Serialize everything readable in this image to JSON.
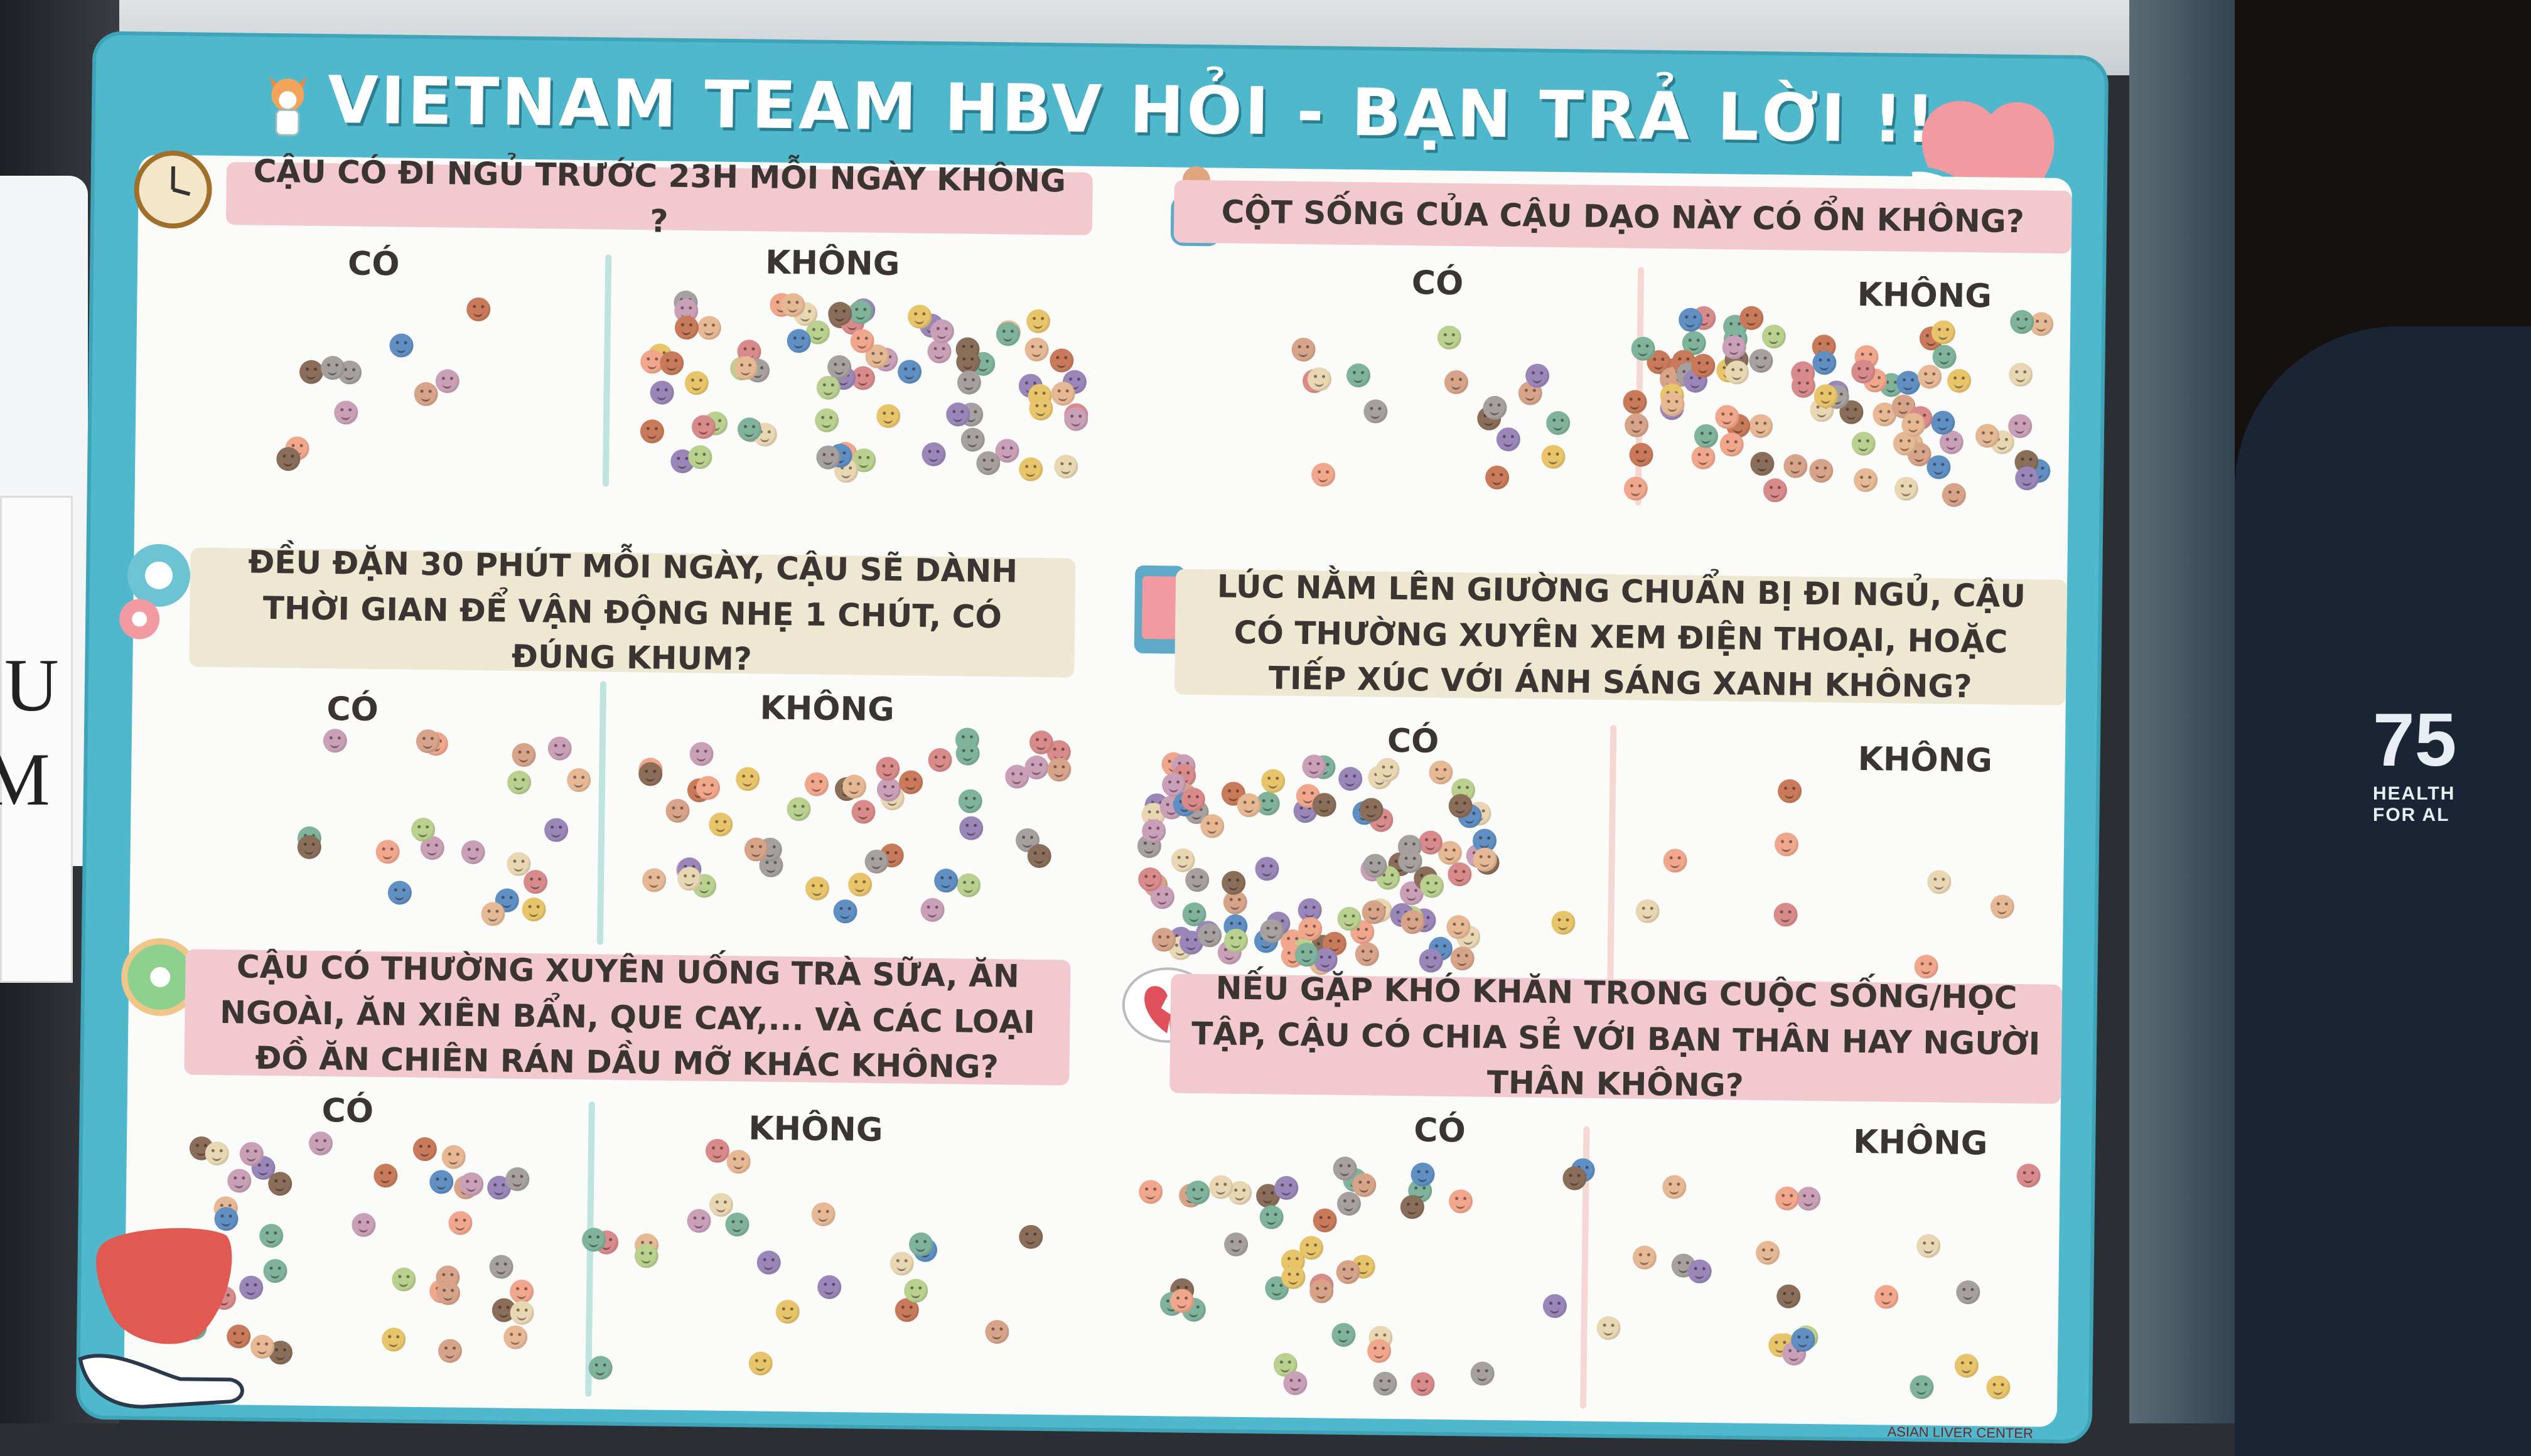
{
  "board": {
    "title": "VIETNAM TEAM HBV HỎI - BẠN TRẢ LỜI !!",
    "footer": "ASIAN LIVER CENTER"
  },
  "questions": [
    {
      "text": "CẬU CÓ ĐI NGỦ TRƯỚC 23H MỖI NGÀY KHÔNG ?",
      "yes": "CÓ",
      "no": "KHÔNG",
      "icon": "clock-icon"
    },
    {
      "text": "CỘT SỐNG CỦA CẬU DẠO NÀY CÓ ỔN KHÔNG?",
      "yes": "CÓ",
      "no": "KHÔNG",
      "icon": "back-pain-icon"
    },
    {
      "text": "ĐỀU ĐẶN 30 PHÚT MỖI NGÀY, CẬU SẼ DÀNH THỜI GIAN ĐỂ VẬN ĐỘNG NHẸ 1 CHÚT, CÓ ĐÚNG KHUM?",
      "yes": "CÓ",
      "no": "KHÔNG",
      "icon": "kettlebell-icon"
    },
    {
      "text": "LÚC NẰM LÊN GIƯỜNG CHUẨN BỊ ĐI NGỦ, CẬU CÓ THƯỜNG XUYÊN XEM ĐIỆN THOẠI, HOẶC TIẾP XÚC VỚI ÁNH SÁNG XANH KHÔNG?",
      "yes": "CÓ",
      "no": "KHÔNG",
      "icon": "phone-icon"
    },
    {
      "text": "CẬU CÓ THƯỜNG XUYÊN UỐNG TRÀ SỮA, ĂN NGOÀI, ĂN XIÊN BẨN, QUE CAY,... VÀ CÁC LOẠI ĐỒ ĂN CHIÊN RÁN DẦU MỠ KHÁC KHÔNG?",
      "yes": "CÓ",
      "no": "KHÔNG",
      "icon": "donut-icon"
    },
    {
      "text": "NẾU GẶP KHÓ KHĂN TRONG CUỘC SỐNG/HỌC TẬP, CẬU CÓ CHIA SẺ VỚI BẠN THÂN HAY NGƯỜI THÂN KHÔNG?",
      "yes": "CÓ",
      "no": "KHÔNG",
      "icon": "broken-heart-icon"
    }
  ],
  "shirt": {
    "number": "75",
    "line1": "HEALTH",
    "line2": "FOR AL"
  },
  "sign": {
    "letter1": "U",
    "letter2": "M"
  },
  "colors": {
    "board": "#4fb8cd",
    "pink": "#f2c9cf",
    "beige": "#eee7d2"
  }
}
